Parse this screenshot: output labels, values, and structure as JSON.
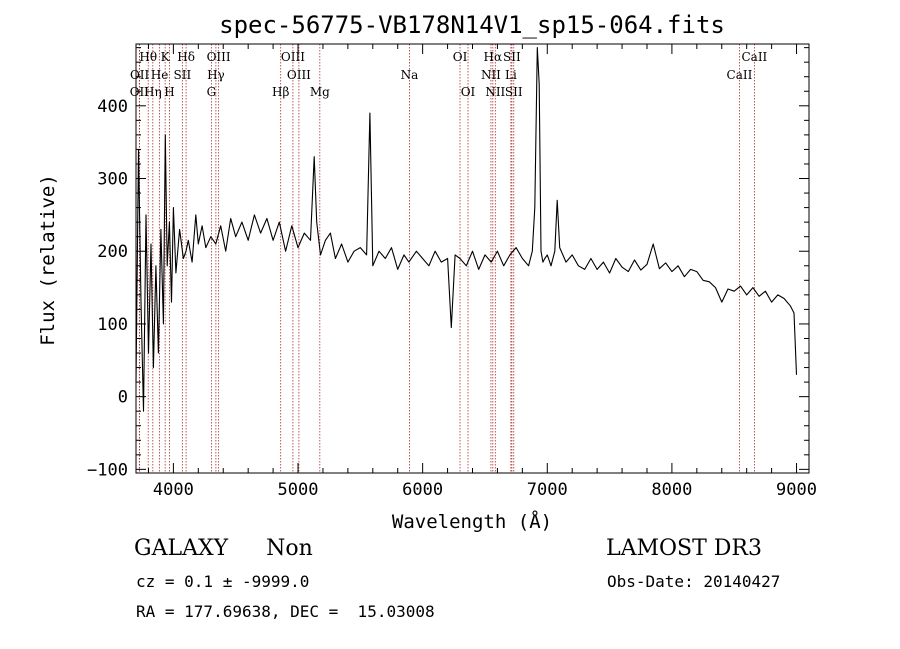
{
  "chart_data": {
    "type": "line",
    "title": "spec-56775-VB178N14V1_sp15-064.fits",
    "xlabel": "Wavelength (Å)",
    "ylabel": "Flux (relative)",
    "xlim": [
      3700,
      9100
    ],
    "ylim": [
      -105,
      485
    ],
    "x_ticks": [
      4000,
      5000,
      6000,
      7000,
      8000,
      9000
    ],
    "y_ticks": [
      -100,
      0,
      100,
      200,
      300,
      400
    ],
    "x_minor_step": 200,
    "y_minor_step": 20,
    "line_color": "#000000",
    "marker_color": "#b03030",
    "series": [
      {
        "name": "flux",
        "x": [
          3700,
          3720,
          3740,
          3760,
          3780,
          3800,
          3820,
          3840,
          3860,
          3880,
          3900,
          3920,
          3935,
          3950,
          3968,
          3985,
          4000,
          4020,
          4050,
          4080,
          4101,
          4120,
          4150,
          4180,
          4200,
          4230,
          4260,
          4300,
          4340,
          4380,
          4420,
          4460,
          4500,
          4550,
          4600,
          4650,
          4700,
          4750,
          4800,
          4850,
          4900,
          4950,
          5000,
          5050,
          5100,
          5130,
          5150,
          5180,
          5220,
          5260,
          5300,
          5350,
          5400,
          5450,
          5500,
          5550,
          5577,
          5600,
          5650,
          5700,
          5750,
          5800,
          5850,
          5890,
          5950,
          6000,
          6050,
          6100,
          6150,
          6200,
          6230,
          6260,
          6300,
          6350,
          6400,
          6450,
          6500,
          6550,
          6600,
          6650,
          6700,
          6750,
          6800,
          6850,
          6880,
          6900,
          6920,
          6935,
          6950,
          6965,
          6980,
          7000,
          7030,
          7060,
          7080,
          7100,
          7150,
          7200,
          7250,
          7300,
          7350,
          7400,
          7450,
          7500,
          7550,
          7600,
          7650,
          7700,
          7750,
          7800,
          7850,
          7900,
          7950,
          8000,
          8050,
          8100,
          8150,
          8200,
          8250,
          8300,
          8350,
          8400,
          8450,
          8500,
          8550,
          8600,
          8650,
          8700,
          8750,
          8800,
          8850,
          8900,
          8950,
          8980,
          9000
        ],
        "y": [
          20,
          340,
          130,
          -20,
          250,
          60,
          210,
          40,
          180,
          60,
          230,
          100,
          360,
          180,
          240,
          130,
          260,
          170,
          230,
          190,
          200,
          215,
          185,
          250,
          210,
          235,
          205,
          220,
          210,
          235,
          200,
          245,
          220,
          240,
          215,
          250,
          225,
          245,
          215,
          240,
          200,
          235,
          205,
          225,
          215,
          330,
          240,
          195,
          215,
          225,
          190,
          210,
          185,
          200,
          205,
          195,
          390,
          180,
          200,
          190,
          205,
          175,
          195,
          185,
          200,
          190,
          180,
          200,
          185,
          190,
          95,
          195,
          190,
          180,
          200,
          175,
          195,
          185,
          200,
          180,
          195,
          205,
          190,
          180,
          200,
          260,
          480,
          430,
          200,
          185,
          190,
          195,
          180,
          200,
          270,
          205,
          185,
          195,
          180,
          175,
          190,
          175,
          185,
          170,
          190,
          178,
          172,
          188,
          174,
          182,
          210,
          176,
          184,
          172,
          180,
          165,
          175,
          172,
          160,
          158,
          150,
          130,
          148,
          145,
          152,
          140,
          150,
          138,
          145,
          130,
          140,
          135,
          125,
          115,
          30
        ]
      }
    ],
    "lines": [
      {
        "label": "OII",
        "wave": 3727,
        "row": 2
      },
      {
        "label": "Hθ",
        "wave": 3798,
        "row": 0
      },
      {
        "label": "OII",
        "wave": 3729,
        "row": 1
      },
      {
        "label": "Hη",
        "wave": 3835,
        "row": 2
      },
      {
        "label": "K",
        "wave": 3934,
        "row": 0
      },
      {
        "label": "He",
        "wave": 3889,
        "row": 1
      },
      {
        "label": "Hδ",
        "wave": 4102,
        "row": 0
      },
      {
        "label": "H",
        "wave": 3969,
        "row": 2
      },
      {
        "label": "SII",
        "wave": 4072,
        "row": 1
      },
      {
        "label": "OIII",
        "wave": 4363,
        "row": 0
      },
      {
        "label": "Hγ",
        "wave": 4341,
        "row": 1
      },
      {
        "label": "G",
        "wave": 4305,
        "row": 2
      },
      {
        "label": "Hβ",
        "wave": 4861,
        "row": 2
      },
      {
        "label": "OIII",
        "wave": 4959,
        "row": 0
      },
      {
        "label": "OIII",
        "wave": 5007,
        "row": 1
      },
      {
        "label": "Mg",
        "wave": 5175,
        "row": 2
      },
      {
        "label": "Na",
        "wave": 5894,
        "row": 1
      },
      {
        "label": "OI",
        "wave": 6300,
        "row": 0
      },
      {
        "label": "OI",
        "wave": 6364,
        "row": 2
      },
      {
        "label": "Hα",
        "wave": 6563,
        "row": 0
      },
      {
        "label": "NII",
        "wave": 6548,
        "row": 1
      },
      {
        "label": "NII",
        "wave": 6583,
        "row": 2
      },
      {
        "label": "SII",
        "wave": 6716,
        "row": 0
      },
      {
        "label": "Li",
        "wave": 6708,
        "row": 1
      },
      {
        "label": "SII",
        "wave": 6731,
        "row": 2
      },
      {
        "label": "CaII",
        "wave": 8662,
        "row": 0
      },
      {
        "label": "CaII",
        "wave": 8542,
        "row": 1
      }
    ]
  },
  "info": {
    "class": "GALAXY",
    "subclass": "Non",
    "survey": "LAMOST DR3",
    "cz_line": "cz = 0.1 ± -9999.0",
    "obs_date": "Obs-Date: 20140427",
    "radec_line": "RA = 177.69638, DEC =  15.03008"
  }
}
